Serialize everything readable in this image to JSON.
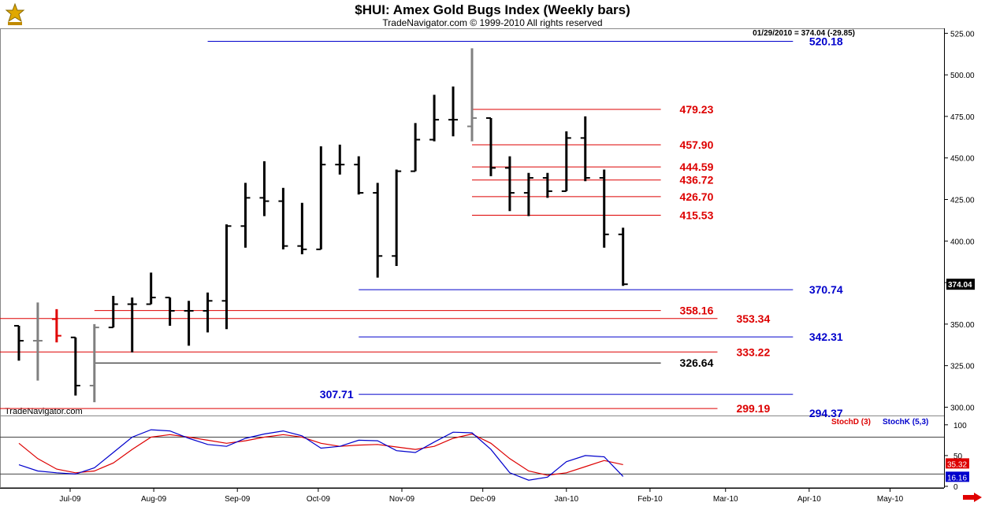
{
  "header": {
    "title": "$HUI:  Amex Gold Bugs Index  (Weekly bars)",
    "subtitle": "TradeNavigator.com © 1999-2010 All rights reserved",
    "readout": "01/29/2010 = 374.04 (-29.85)",
    "watermark": "TradeNavigator.com"
  },
  "colors": {
    "background": "#ffffff",
    "bar": "#000000",
    "bar_gray": "#808080",
    "bar_red": "#e00000",
    "level_red": "#dd0000",
    "level_blue": "#0000cc",
    "level_black": "#000000",
    "stoch_d": "#dd0000",
    "stoch_k": "#0000cc",
    "grid": "#c8c8c8"
  },
  "chart_data": [
    {
      "type": "ohlc",
      "title": "$HUI:  Amex Gold Bugs Index  (Weekly bars)",
      "ylim": [
        295,
        528
      ],
      "y_ticks": [
        300,
        325,
        350,
        375,
        400,
        425,
        450,
        475,
        500,
        525
      ],
      "y_tick_labels": [
        "300.00",
        "325.00",
        "350.00",
        "375.00",
        "400.00",
        "425.00",
        "450.00",
        "475.00",
        "500.00",
        "525.00"
      ],
      "x_range": [
        "2009-06-05",
        "2010-05-21"
      ],
      "x_ticks": [
        {
          "date": "2009-07-01",
          "label": "Jul-09"
        },
        {
          "date": "2009-08-01",
          "label": "Aug-09"
        },
        {
          "date": "2009-09-01",
          "label": "Sep-09"
        },
        {
          "date": "2009-10-01",
          "label": "Oct-09"
        },
        {
          "date": "2009-11-01",
          "label": "Nov-09"
        },
        {
          "date": "2009-12-01",
          "label": "Dec-09"
        },
        {
          "date": "2010-01-01",
          "label": "Jan-10"
        },
        {
          "date": "2010-02-01",
          "label": "Feb-10"
        },
        {
          "date": "2010-03-01",
          "label": "Mar-10"
        },
        {
          "date": "2010-04-01",
          "label": "Apr-10"
        },
        {
          "date": "2010-05-01",
          "label": "May-10"
        }
      ],
      "last_price_label": "374.04",
      "bars": [
        {
          "date": "2009-06-12",
          "open": 349,
          "high": 349,
          "low": 328,
          "close": 340,
          "color": "black"
        },
        {
          "date": "2009-06-19",
          "open": 340,
          "high": 363,
          "low": 316,
          "close": 340,
          "color": "gray"
        },
        {
          "date": "2009-06-26",
          "open": 353,
          "high": 359,
          "low": 339,
          "close": 343,
          "color": "red"
        },
        {
          "date": "2009-07-03",
          "open": 342,
          "high": 342,
          "low": 307,
          "close": 313,
          "color": "black"
        },
        {
          "date": "2009-07-10",
          "open": 313,
          "high": 350,
          "low": 303,
          "close": 348,
          "color": "gray"
        },
        {
          "date": "2009-07-17",
          "open": 348,
          "high": 367,
          "low": 348,
          "close": 362,
          "color": "black"
        },
        {
          "date": "2009-07-24",
          "open": 362,
          "high": 366,
          "low": 333,
          "close": 362,
          "color": "black"
        },
        {
          "date": "2009-07-31",
          "open": 362,
          "high": 381,
          "low": 362,
          "close": 366,
          "color": "black"
        },
        {
          "date": "2009-08-07",
          "open": 366,
          "high": 366,
          "low": 349,
          "close": 358,
          "color": "black"
        },
        {
          "date": "2009-08-14",
          "open": 358,
          "high": 364,
          "low": 337,
          "close": 358,
          "color": "black"
        },
        {
          "date": "2009-08-21",
          "open": 358,
          "high": 369,
          "low": 345,
          "close": 364,
          "color": "black"
        },
        {
          "date": "2009-08-28",
          "open": 364,
          "high": 410,
          "low": 347,
          "close": 409,
          "color": "black"
        },
        {
          "date": "2009-09-04",
          "open": 409,
          "high": 435,
          "low": 396,
          "close": 426,
          "color": "black"
        },
        {
          "date": "2009-09-11",
          "open": 426,
          "high": 448,
          "low": 415,
          "close": 424,
          "color": "black"
        },
        {
          "date": "2009-09-18",
          "open": 424,
          "high": 432,
          "low": 395,
          "close": 397,
          "color": "black"
        },
        {
          "date": "2009-09-25",
          "open": 397,
          "high": 423,
          "low": 392,
          "close": 395,
          "color": "black"
        },
        {
          "date": "2009-10-02",
          "open": 395,
          "high": 457,
          "low": 395,
          "close": 446,
          "color": "black"
        },
        {
          "date": "2009-10-09",
          "open": 446,
          "high": 458,
          "low": 440,
          "close": 446,
          "color": "black"
        },
        {
          "date": "2009-10-16",
          "open": 446,
          "high": 451,
          "low": 428,
          "close": 429,
          "color": "black"
        },
        {
          "date": "2009-10-23",
          "open": 429,
          "high": 435,
          "low": 378,
          "close": 391,
          "color": "black"
        },
        {
          "date": "2009-10-30",
          "open": 391,
          "high": 443,
          "low": 385,
          "close": 442,
          "color": "black"
        },
        {
          "date": "2009-11-06",
          "open": 442,
          "high": 471,
          "low": 442,
          "close": 461,
          "color": "black"
        },
        {
          "date": "2009-11-13",
          "open": 461,
          "high": 488,
          "low": 460,
          "close": 473,
          "color": "black"
        },
        {
          "date": "2009-11-20",
          "open": 473,
          "high": 493,
          "low": 463,
          "close": 473,
          "color": "black"
        },
        {
          "date": "2009-11-27",
          "open": 469,
          "high": 516,
          "low": 460,
          "close": 474,
          "color": "gray"
        },
        {
          "date": "2009-12-04",
          "open": 474,
          "high": 474,
          "low": 439,
          "close": 444,
          "color": "black"
        },
        {
          "date": "2009-12-11",
          "open": 444,
          "high": 451,
          "low": 418,
          "close": 429,
          "color": "black"
        },
        {
          "date": "2009-12-18",
          "open": 429,
          "high": 441,
          "low": 415,
          "close": 438,
          "color": "black"
        },
        {
          "date": "2009-12-25",
          "open": 438,
          "high": 441,
          "low": 426,
          "close": 430,
          "color": "black"
        },
        {
          "date": "2010-01-01",
          "open": 430,
          "high": 466,
          "low": 430,
          "close": 462,
          "color": "black"
        },
        {
          "date": "2010-01-08",
          "open": 462,
          "high": 475,
          "low": 436,
          "close": 438,
          "color": "black"
        },
        {
          "date": "2010-01-15",
          "open": 438,
          "high": 443,
          "low": 396,
          "close": 404,
          "color": "black"
        },
        {
          "date": "2010-01-22",
          "open": 404,
          "high": 408,
          "low": 373,
          "close": 374,
          "color": "black"
        }
      ],
      "levels": [
        {
          "value": 520.18,
          "label": "520.18",
          "color": "blue",
          "from": "2009-08-21",
          "to": "2010-03-26",
          "label_at": "2010-04-01"
        },
        {
          "value": 479.23,
          "label": "479.23",
          "color": "red",
          "from": "2009-11-27",
          "to": "2010-02-05",
          "label_at": "2010-02-12"
        },
        {
          "value": 457.9,
          "label": "457.90",
          "color": "red",
          "from": "2009-11-27",
          "to": "2010-02-05",
          "label_at": "2010-02-12"
        },
        {
          "value": 444.59,
          "label": "444.59",
          "color": "red",
          "from": "2009-11-27",
          "to": "2010-02-05",
          "label_at": "2010-02-12"
        },
        {
          "value": 436.72,
          "label": "436.72",
          "color": "red",
          "from": "2009-11-27",
          "to": "2010-02-05",
          "label_at": "2010-02-12"
        },
        {
          "value": 426.7,
          "label": "426.70",
          "color": "red",
          "from": "2009-11-27",
          "to": "2010-02-05",
          "label_at": "2010-02-12"
        },
        {
          "value": 415.53,
          "label": "415.53",
          "color": "red",
          "from": "2009-11-27",
          "to": "2010-02-05",
          "label_at": "2010-02-12"
        },
        {
          "value": 370.74,
          "label": "370.74",
          "color": "blue",
          "from": "2009-10-16",
          "to": "2010-03-26",
          "label_at": "2010-04-01"
        },
        {
          "value": 358.16,
          "label": "358.16",
          "color": "red",
          "from": "2009-07-10",
          "to": "2010-02-05",
          "label_at": "2010-02-12"
        },
        {
          "value": 353.34,
          "label": "353.34",
          "color": "red",
          "from": "2009-06-05",
          "to": "2010-02-26",
          "label_at": "2010-03-05"
        },
        {
          "value": 342.31,
          "label": "342.31",
          "color": "blue",
          "from": "2009-10-16",
          "to": "2010-03-26",
          "label_at": "2010-04-01"
        },
        {
          "value": 333.22,
          "label": "333.22",
          "color": "red",
          "from": "2009-06-05",
          "to": "2010-02-26",
          "label_at": "2010-03-05"
        },
        {
          "value": 326.64,
          "label": "326.64",
          "color": "black",
          "from": "2009-07-10",
          "to": "2010-02-05",
          "label_at": "2010-02-12"
        },
        {
          "value": 307.71,
          "label": "307.71",
          "color": "blue",
          "from": "2009-10-16",
          "to": "2010-03-26",
          "label_at": "2009-09-28",
          "label_side": "left"
        },
        {
          "value": 299.19,
          "label": "299.19",
          "color": "red",
          "from": "2009-06-05",
          "to": "2010-02-26",
          "label_at": "2010-03-05"
        },
        {
          "value": 294.37,
          "label": "294.37",
          "color": "blue",
          "from": "2010-03-26",
          "to": "2010-03-26",
          "label_at": "2010-04-01"
        }
      ]
    },
    {
      "type": "line",
      "series": [
        {
          "name": "StochD (3)",
          "color": "red",
          "x": [
            "2009-06-12",
            "2009-06-19",
            "2009-06-26",
            "2009-07-03",
            "2009-07-10",
            "2009-07-17",
            "2009-07-24",
            "2009-07-31",
            "2009-08-07",
            "2009-08-14",
            "2009-08-21",
            "2009-08-28",
            "2009-09-04",
            "2009-09-11",
            "2009-09-18",
            "2009-09-25",
            "2009-10-02",
            "2009-10-09",
            "2009-10-16",
            "2009-10-23",
            "2009-10-30",
            "2009-11-06",
            "2009-11-13",
            "2009-11-20",
            "2009-11-27",
            "2009-12-04",
            "2009-12-11",
            "2009-12-18",
            "2009-12-25",
            "2010-01-01",
            "2010-01-08",
            "2010-01-15",
            "2010-01-22"
          ],
          "values": [
            70,
            45,
            28,
            22,
            25,
            38,
            60,
            80,
            84,
            80,
            75,
            70,
            74,
            80,
            84,
            80,
            70,
            65,
            67,
            68,
            64,
            60,
            65,
            78,
            85,
            70,
            45,
            25,
            18,
            22,
            32,
            42,
            35.32
          ]
        },
        {
          "name": "StochK (5,3)",
          "color": "blue",
          "x": [
            "2009-06-12",
            "2009-06-19",
            "2009-06-26",
            "2009-07-03",
            "2009-07-10",
            "2009-07-17",
            "2009-07-24",
            "2009-07-31",
            "2009-08-07",
            "2009-08-14",
            "2009-08-21",
            "2009-08-28",
            "2009-09-04",
            "2009-09-11",
            "2009-09-18",
            "2009-09-25",
            "2009-10-02",
            "2009-10-09",
            "2009-10-16",
            "2009-10-23",
            "2009-10-30",
            "2009-11-06",
            "2009-11-13",
            "2009-11-20",
            "2009-11-27",
            "2009-12-04",
            "2009-12-11",
            "2009-12-18",
            "2009-12-25",
            "2010-01-01",
            "2010-01-08",
            "2010-01-15",
            "2010-01-22"
          ],
          "values": [
            35,
            25,
            22,
            20,
            30,
            55,
            80,
            92,
            90,
            78,
            68,
            65,
            78,
            85,
            90,
            82,
            62,
            65,
            75,
            74,
            58,
            55,
            72,
            88,
            87,
            60,
            22,
            10,
            15,
            40,
            50,
            48,
            16.16
          ]
        }
      ],
      "ylim": [
        0,
        110
      ],
      "y_ticks": [
        0,
        50,
        100
      ],
      "y_tick_labels": [
        "0",
        "50",
        "100"
      ],
      "ref_lines": [
        20,
        80
      ],
      "last_labels": {
        "d": "35.32",
        "k": "16.16"
      }
    }
  ]
}
